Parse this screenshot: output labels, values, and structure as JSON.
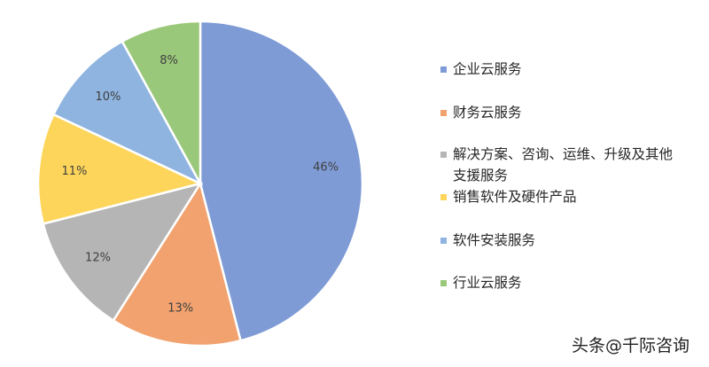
{
  "chart_data": {
    "type": "pie",
    "categories": [
      "企业云服务",
      "财务云服务",
      "解决方案、咨询、运维、升级及其他支援服务",
      "销售软件及硬件产品",
      "软件安装服务",
      "行业云服务"
    ],
    "values": [
      46,
      13,
      12,
      11,
      10,
      8
    ],
    "data_labels": [
      "46%",
      "13%",
      "12%",
      "11%",
      "10%",
      "8%"
    ],
    "colors": [
      "#7F9BD6",
      "#F1A26E",
      "#B5B5B5",
      "#FDD55B",
      "#8FB4E0",
      "#9AC87A"
    ],
    "start_angle_deg": 0,
    "direction": "clockwise",
    "legend_position": "right"
  },
  "legend": {
    "items": [
      {
        "label": "企业云服务"
      },
      {
        "label": "财务云服务"
      },
      {
        "label": "解决方案、咨询、运维、升级及其他支援服务"
      },
      {
        "label": "销售软件及硬件产品"
      },
      {
        "label": "软件安装服务"
      },
      {
        "label": "行业云服务"
      }
    ]
  },
  "watermark": {
    "prefix": "头条",
    "text": "@千际咨询"
  }
}
